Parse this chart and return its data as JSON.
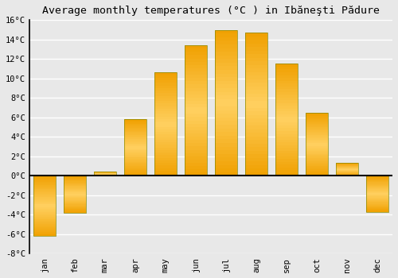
{
  "title": "Average monthly temperatures (°C ) in Ibăneşti Pădure",
  "months": [
    "Jan",
    "Feb",
    "Mar",
    "Apr",
    "May",
    "Jun",
    "Jul",
    "Aug",
    "Sep",
    "Oct",
    "Nov",
    "Dec"
  ],
  "values": [
    -6.2,
    -3.8,
    0.4,
    5.8,
    10.6,
    13.4,
    15.0,
    14.7,
    11.5,
    6.5,
    1.3,
    -3.7
  ],
  "bar_color_outer": "#F0A000",
  "bar_color_inner": "#FFD060",
  "ylim": [
    -8,
    16
  ],
  "yticks": [
    -8,
    -6,
    -4,
    -2,
    0,
    2,
    4,
    6,
    8,
    10,
    12,
    14,
    16
  ],
  "background_color": "#e8e8e8",
  "grid_color": "#ffffff",
  "title_fontsize": 9.5,
  "tick_fontsize": 7.5
}
